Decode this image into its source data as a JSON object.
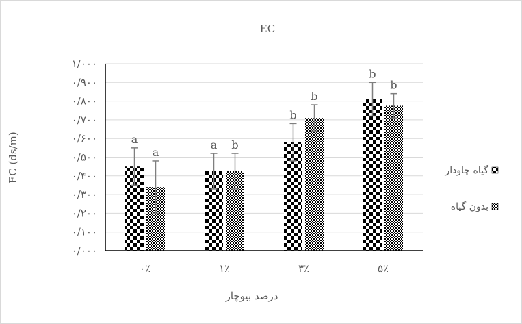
{
  "chart_data": {
    "type": "bar",
    "title": "EC",
    "xlabel": "درصد بیوچار",
    "ylabel": "EC (ds/m)",
    "categories": [
      "۰٪",
      "۱٪",
      "۳٪",
      "۵٪"
    ],
    "ylim": [
      0,
      1
    ],
    "yticks": [
      "۰/۰۰۰",
      "۰/۱۰۰",
      "۰/۲۰۰",
      "۰/۳۰۰",
      "۰/۴۰۰",
      "۰/۵۰۰",
      "۰/۶۰۰",
      "۰/۷۰۰",
      "۰/۸۰۰",
      "۰/۹۰۰",
      "۱/۰۰۰"
    ],
    "grid": true,
    "legend_position": "right",
    "series": [
      {
        "name": "گیاه چاودار",
        "pattern": "checker",
        "values": [
          0.45,
          0.425,
          0.58,
          0.81
        ],
        "errors": [
          0.1,
          0.095,
          0.1,
          0.09
        ],
        "letters": [
          "a",
          "a",
          "b",
          "b"
        ]
      },
      {
        "name": "بدون گیاه",
        "pattern": "dots",
        "values": [
          0.34,
          0.425,
          0.71,
          0.775
        ],
        "errors": [
          0.14,
          0.095,
          0.07,
          0.065
        ],
        "letters": [
          "a",
          "b",
          "b",
          "b"
        ]
      }
    ],
    "colors": {
      "bar": "#000000",
      "grid": "#d9d9d9",
      "text": "#595959",
      "errorbar": "#7f7f7f"
    }
  }
}
